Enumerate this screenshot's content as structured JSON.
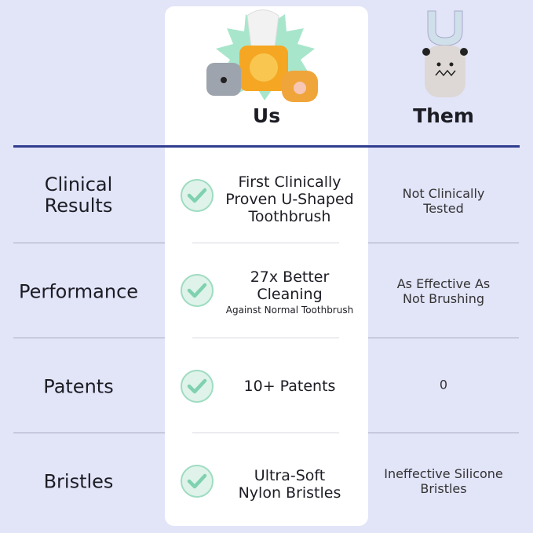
{
  "header": {
    "us": "Us",
    "them": "Them"
  },
  "colors": {
    "background": "#e2e4f8",
    "divider": "#2f3d8e",
    "check": "#7fd1b0"
  },
  "icons": {
    "check": "check-circle-icon"
  },
  "rows": [
    {
      "label": "Clinical Results",
      "us": "First Clinically Proven U-Shaped Toothbrush",
      "us_note": "",
      "them": "Not Clinically Tested"
    },
    {
      "label": "Performance",
      "us": "27x Better Cleaning",
      "us_note": "Against Normal Toothbrush",
      "them": "As Effective As Not Brushing"
    },
    {
      "label": "Patents",
      "us": "10+ Patents",
      "us_note": "",
      "them": "0"
    },
    {
      "label": "Bristles",
      "us": "Ultra-Soft Nylon Bristles",
      "us_note": "",
      "them": "Ineffective Silicone Bristles"
    }
  ]
}
